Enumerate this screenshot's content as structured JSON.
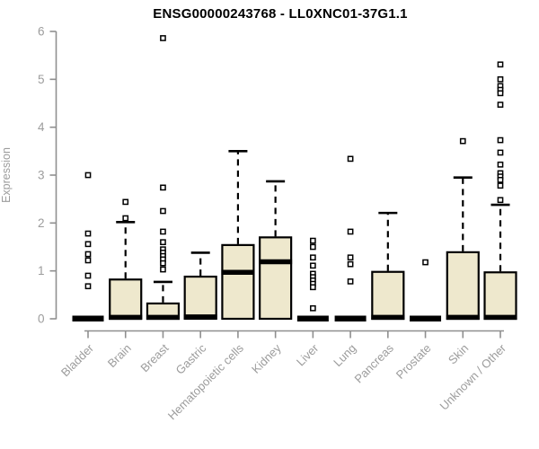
{
  "chart_data": {
    "type": "boxplot",
    "title": "ENSG00000243768 - LL0XNC01-37G1.1",
    "ylabel": "Expression",
    "xlabel": "",
    "ylim": [
      0,
      6
    ],
    "yticks": [
      0,
      1,
      2,
      3,
      4,
      5,
      6
    ],
    "grid": false,
    "legend": "none",
    "colors": {
      "box_fill": "#eee8cd",
      "box_stroke": "#000000",
      "median": "#000000",
      "whisker": "#000000",
      "outlier_stroke": "#000000",
      "axis": "#8f8f8f",
      "tick_text": "#9c9c9c",
      "title_text": "#000000"
    },
    "categories": [
      "Bladder",
      "Brain",
      "Breast",
      "Gastric",
      "Hematopoietic cells",
      "Kidney",
      "Liver",
      "Lung",
      "Pancreas",
      "Prostate",
      "Skin",
      "Unknown / Other"
    ],
    "series": [
      {
        "label": "Bladder",
        "min": 0,
        "q1": 0,
        "median": 0,
        "q3": 0,
        "max": 0,
        "outliers": [
          3.0,
          1.78,
          1.56,
          1.35,
          1.22,
          0.9,
          0.68
        ]
      },
      {
        "label": "Brain",
        "min": 0,
        "q1": 0,
        "median": 0.03,
        "q3": 0.82,
        "max": 2.02,
        "outliers": [
          2.44,
          2.1
        ]
      },
      {
        "label": "Breast",
        "min": 0,
        "q1": 0,
        "median": 0.03,
        "q3": 0.32,
        "max": 0.77,
        "outliers": [
          5.86,
          2.74,
          2.25,
          1.82,
          1.6,
          1.45,
          1.38,
          1.31,
          1.24,
          1.16,
          1.03
        ]
      },
      {
        "label": "Gastric",
        "min": 0,
        "q1": 0,
        "median": 0.04,
        "q3": 0.88,
        "max": 1.38,
        "outliers": []
      },
      {
        "label": "Hematopoietic cells",
        "min": 0,
        "q1": 0,
        "median": 0.97,
        "q3": 1.54,
        "max": 3.5,
        "outliers": []
      },
      {
        "label": "Kidney",
        "min": 0,
        "q1": 0,
        "median": 1.19,
        "q3": 1.7,
        "max": 2.87,
        "outliers": []
      },
      {
        "label": "Liver",
        "min": 0,
        "q1": 0,
        "median": 0,
        "q3": 0,
        "max": 0,
        "outliers": [
          1.63,
          1.5,
          1.28,
          1.11,
          0.94,
          0.87,
          0.8,
          0.73,
          0.66,
          0.22
        ]
      },
      {
        "label": "Lung",
        "min": 0,
        "q1": 0,
        "median": 0,
        "q3": 0,
        "max": 0,
        "outliers": [
          3.34,
          1.82,
          1.28,
          1.14,
          0.78
        ]
      },
      {
        "label": "Pancreas",
        "min": 0,
        "q1": 0,
        "median": 0.03,
        "q3": 0.98,
        "max": 2.21,
        "outliers": []
      },
      {
        "label": "Prostate",
        "min": 0,
        "q1": 0,
        "median": 0,
        "q3": 0,
        "max": 0,
        "outliers": [
          1.18
        ]
      },
      {
        "label": "Skin",
        "min": 0,
        "q1": 0,
        "median": 0.03,
        "q3": 1.39,
        "max": 2.95,
        "outliers": [
          3.71
        ]
      },
      {
        "label": "Unknown / Other",
        "min": 0,
        "q1": 0,
        "median": 0.03,
        "q3": 0.97,
        "max": 2.38,
        "outliers": [
          5.31,
          5.0,
          4.86,
          4.78,
          4.71,
          4.47,
          3.73,
          3.47,
          3.22,
          3.04,
          2.97,
          2.9,
          2.78,
          2.48
        ]
      }
    ]
  }
}
